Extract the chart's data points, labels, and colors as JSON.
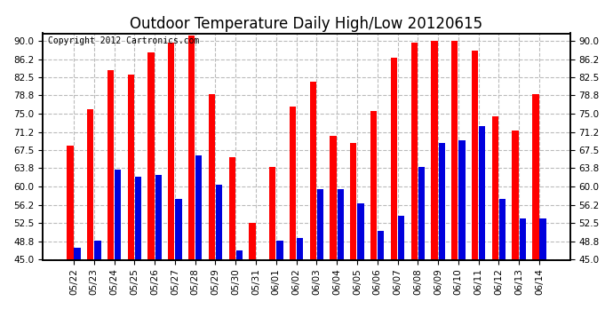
{
  "title": "Outdoor Temperature Daily High/Low 20120615",
  "copyright": "Copyright 2012 Cartronics.com",
  "dates": [
    "05/22",
    "05/23",
    "05/24",
    "05/25",
    "05/26",
    "05/27",
    "05/28",
    "05/29",
    "05/30",
    "05/31",
    "06/01",
    "06/02",
    "06/03",
    "06/04",
    "06/05",
    "06/06",
    "06/07",
    "06/08",
    "06/09",
    "06/10",
    "06/11",
    "06/12",
    "06/13",
    "06/14"
  ],
  "highs": [
    68.5,
    76.0,
    84.0,
    83.0,
    87.5,
    89.5,
    91.0,
    79.0,
    66.0,
    52.5,
    64.0,
    76.5,
    81.5,
    70.5,
    69.0,
    75.5,
    86.5,
    89.5,
    90.0,
    90.0,
    88.0,
    74.5,
    71.5,
    79.0
  ],
  "lows": [
    47.5,
    49.0,
    63.5,
    62.0,
    62.5,
    57.5,
    66.5,
    60.5,
    47.0,
    45.0,
    49.0,
    49.5,
    59.5,
    59.5,
    56.5,
    51.0,
    54.0,
    64.0,
    69.0,
    69.5,
    72.5,
    57.5,
    53.5,
    53.5
  ],
  "high_color": "#ff0000",
  "low_color": "#0000dd",
  "ylim_min": 45.0,
  "ylim_max": 91.5,
  "yticks": [
    45.0,
    48.8,
    52.5,
    56.2,
    60.0,
    63.8,
    67.5,
    71.2,
    75.0,
    78.8,
    82.5,
    86.2,
    90.0
  ],
  "background_color": "#ffffff",
  "grid_color": "#bbbbbb",
  "title_fontsize": 12,
  "tick_fontsize": 7.5,
  "copyright_fontsize": 7,
  "bar_width": 0.32,
  "bar_gap": 0.04
}
